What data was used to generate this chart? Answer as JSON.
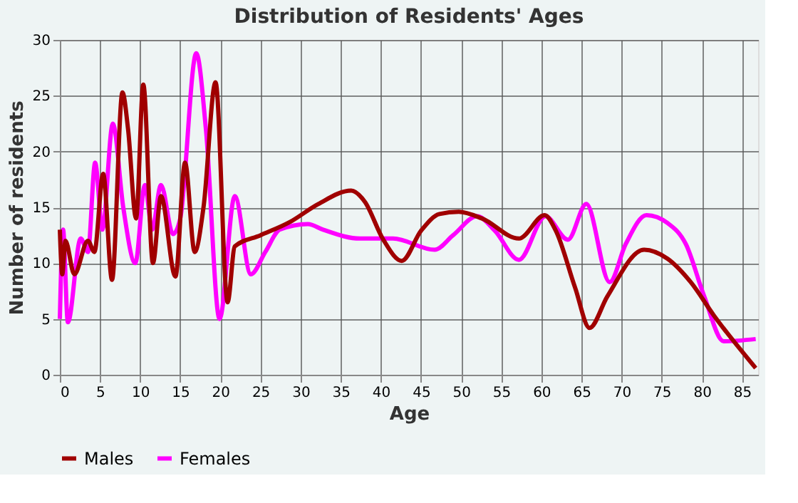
{
  "chart_data": {
    "type": "line",
    "title": "Distribution of Residents' Ages",
    "xlabel": "Age",
    "ylabel": "Number of residents",
    "xlim": [
      0,
      87
    ],
    "xticks": [
      0,
      5,
      10,
      15,
      20,
      25,
      30,
      35,
      40,
      45,
      50,
      55,
      60,
      65,
      70,
      75,
      80,
      85
    ],
    "ylim": [
      0,
      30
    ],
    "yticks": [
      0,
      5,
      10,
      15,
      20,
      25,
      30
    ],
    "grid": true,
    "legend": "bottom",
    "marker": "none",
    "line_style": "solid",
    "series": [
      {
        "name": "Males",
        "color": "#a00000",
        "x": [
          0,
          0.3,
          0.7,
          1.8,
          3.5,
          4.3,
          5.4,
          6.5,
          7.8,
          8.5,
          9.5,
          10.4,
          11.6,
          12.6,
          14.4,
          15.6,
          16.8,
          17.9,
          19.4,
          20.9,
          21.8,
          25,
          28.7,
          32.2,
          36.3,
          38,
          40.3,
          42.6,
          45,
          47.3,
          49.7,
          52.6,
          57.2,
          60.4,
          61.8,
          64.2,
          66,
          68.2,
          72.8,
          75.7,
          78.6,
          81.5,
          86.7
        ],
        "values": [
          13,
          9,
          12,
          9,
          12,
          11,
          18,
          8.5,
          25.3,
          22,
          14,
          26,
          10,
          16,
          8.8,
          19,
          11,
          15,
          26.2,
          6.5,
          11.5,
          12.5,
          13.7,
          15.3,
          16.5,
          15.5,
          12.1,
          10.2,
          12.9,
          14.4,
          14.6,
          14,
          12.2,
          14.3,
          12.9,
          7.8,
          4.2,
          7,
          11.2,
          10.4,
          8.3,
          5.3,
          0.6
        ]
      },
      {
        "name": "Females",
        "color": "#ff00ff",
        "x": [
          0,
          0.4,
          1,
          2.6,
          3.5,
          4.4,
          5.3,
          6.6,
          7.9,
          9.4,
          10.6,
          11.5,
          12.6,
          14.1,
          15,
          17,
          18.2,
          19.9,
          21.8,
          23.8,
          25.6,
          27.4,
          30.9,
          32.8,
          37.4,
          41.5,
          46.7,
          49,
          52,
          54.2,
          57.2,
          60.5,
          63.3,
          65.6,
          68.5,
          70.5,
          73.1,
          75.7,
          78,
          80.3,
          82.7,
          86.7
        ],
        "values": [
          5,
          13,
          4.7,
          12.2,
          11,
          19,
          13,
          22.5,
          15,
          10,
          17,
          13,
          17,
          12.6,
          14,
          28.8,
          22,
          5,
          16,
          9,
          11,
          13,
          13.5,
          13,
          12.2,
          12.2,
          11.2,
          12.5,
          14.2,
          12.9,
          10.3,
          14.2,
          12.1,
          15.3,
          8.3,
          11.7,
          14.3,
          13.6,
          11.7,
          7,
          3,
          3.2
        ]
      }
    ]
  }
}
